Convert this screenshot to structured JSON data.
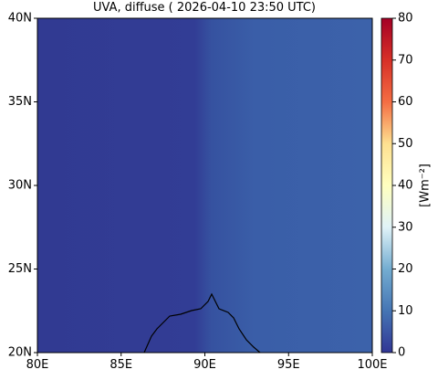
{
  "map": {
    "title": "UVA, diffuse ( 2026-04-10 23:50 UTC)",
    "xlim": [
      80,
      100
    ],
    "xticks": [
      {
        "value": 80,
        "label": "80E"
      },
      {
        "value": 85,
        "label": "85E"
      },
      {
        "value": 90,
        "label": "90E"
      },
      {
        "value": 95,
        "label": "95E"
      },
      {
        "value": 100,
        "label": "100E"
      }
    ],
    "ylim": [
      20,
      40
    ],
    "yticks": [
      {
        "value": 20,
        "label": "20N"
      },
      {
        "value": 25,
        "label": "25N"
      },
      {
        "value": 30,
        "label": "30N"
      },
      {
        "value": 35,
        "label": "35N"
      },
      {
        "value": 40,
        "label": "40N"
      }
    ],
    "colorbar": {
      "label": "[Wm⁻²]",
      "lim": [
        0,
        80
      ],
      "ticks": [
        0,
        10,
        20,
        30,
        40,
        50,
        60,
        70,
        80
      ]
    }
  }
}
